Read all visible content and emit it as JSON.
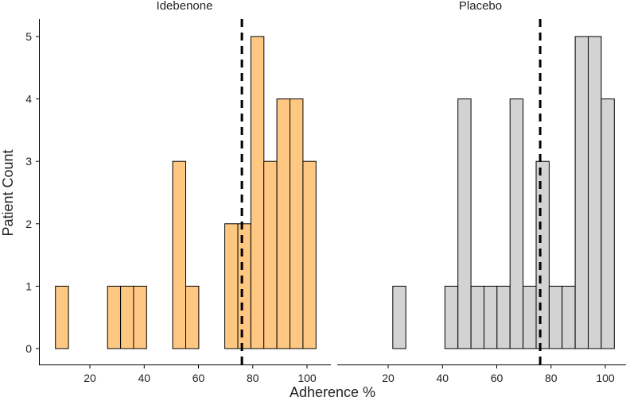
{
  "chart_data": {
    "type": "histogram",
    "xlabel": "Adherence %",
    "ylabel": "Patient Count",
    "xlim": [
      5,
      105
    ],
    "ylim": [
      0,
      5.2
    ],
    "x_ticks": [
      20,
      40,
      60,
      80,
      100
    ],
    "y_ticks": [
      0,
      1,
      2,
      3,
      4,
      5
    ],
    "bin_width": 4.8,
    "bin_start": 7.3,
    "grid": false,
    "reference_line": {
      "x": 76,
      "style": "dashed"
    },
    "panels": [
      {
        "title": "Idebenone",
        "color": "#FFC882",
        "counts": [
          1,
          0,
          0,
          0,
          1,
          1,
          1,
          0,
          0,
          3,
          1,
          0,
          0,
          2,
          2,
          5,
          3,
          4,
          4,
          3
        ]
      },
      {
        "title": "Placebo",
        "color": "#D3D3D3",
        "counts": [
          0,
          0,
          0,
          1,
          0,
          0,
          0,
          1,
          4,
          1,
          1,
          1,
          4,
          1,
          3,
          1,
          1,
          5,
          5,
          4
        ]
      }
    ]
  }
}
